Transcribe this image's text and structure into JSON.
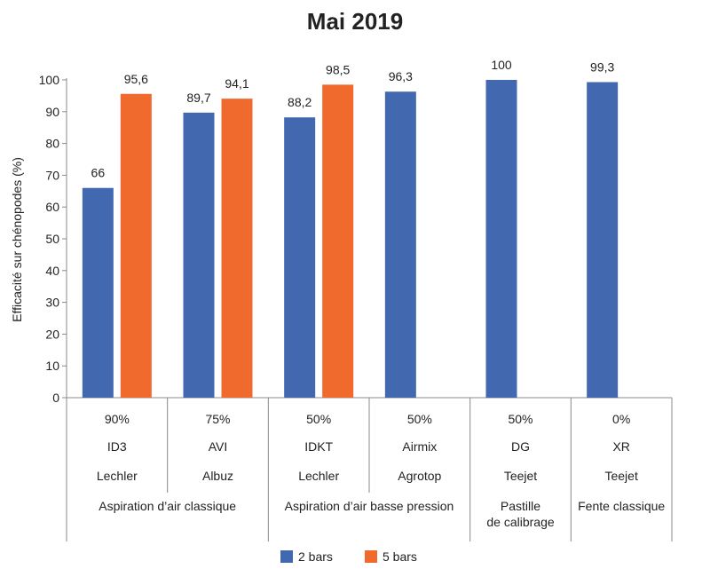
{
  "chart_data": {
    "type": "bar",
    "title": "Mai 2019",
    "ylabel": "Efficacité sur chénopodes (%)",
    "ylim": [
      0,
      100
    ],
    "yticks": [
      "0",
      "10",
      "20",
      "30",
      "40",
      "50",
      "60",
      "70",
      "80",
      "90",
      "100"
    ],
    "categories": [
      {
        "pct": "90%",
        "model": "ID3",
        "brand": "Lechler"
      },
      {
        "pct": "75%",
        "model": "AVI",
        "brand": "Albuz"
      },
      {
        "pct": "50%",
        "model": "IDKT",
        "brand": "Lechler"
      },
      {
        "pct": "50%",
        "model": "Airmix",
        "brand": "Agrotop"
      },
      {
        "pct": "50%",
        "model": "DG",
        "brand": "Teejet"
      },
      {
        "pct": "0%",
        "model": "XR",
        "brand": "Teejet"
      }
    ],
    "groups": [
      {
        "label": [
          "Aspiration d’air classique"
        ],
        "span": [
          0,
          1
        ]
      },
      {
        "label": [
          "Aspiration d’air basse pression"
        ],
        "span": [
          2,
          3
        ]
      },
      {
        "label": [
          "Pastille",
          "de calibrage"
        ],
        "span": [
          4,
          4
        ]
      },
      {
        "label": [
          "Fente classique"
        ],
        "span": [
          5,
          5
        ]
      }
    ],
    "series": [
      {
        "name": "2 bars",
        "color": "#4268b0",
        "values": [
          66,
          89.7,
          88.2,
          96.3,
          100,
          99.3
        ],
        "labels": [
          "66",
          "89,7",
          "88,2",
          "96,3",
          "100",
          "99,3"
        ]
      },
      {
        "name": "5 bars",
        "color": "#f06a2e",
        "values": [
          95.6,
          94.1,
          98.5,
          null,
          null,
          null
        ],
        "labels": [
          "95,6",
          "94,1",
          "98,5",
          null,
          null,
          null
        ]
      }
    ],
    "legend_position": "bottom",
    "grid": false
  }
}
